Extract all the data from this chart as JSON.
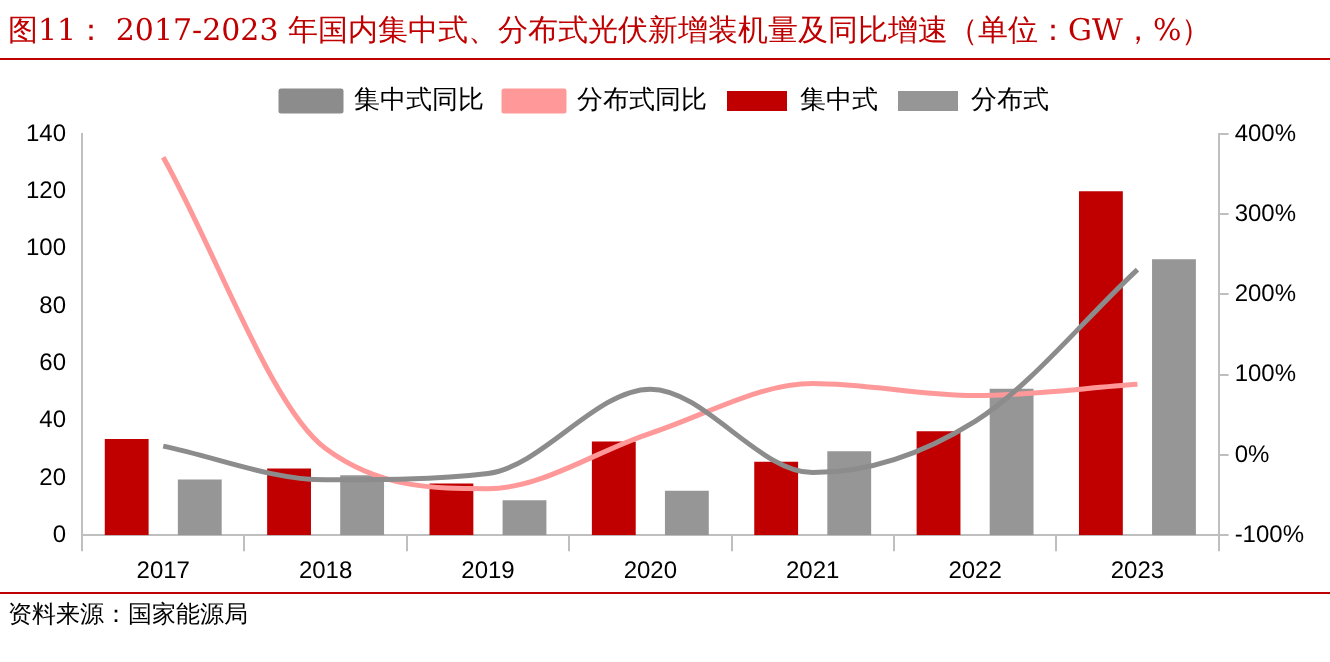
{
  "chart_data": {
    "type": "bar",
    "title": "图11：  2017-2023 年国内集中式、分布式光伏新增装机量及同比增速（单位：GW，%）",
    "categories": [
      "2017",
      "2018",
      "2019",
      "2020",
      "2021",
      "2022",
      "2023"
    ],
    "series": [
      {
        "name": "集中式",
        "color": "#c00000",
        "values": [
          33.6,
          23.3,
          18.0,
          32.7,
          25.6,
          36.3,
          120.0
        ]
      },
      {
        "name": "分布式",
        "color": "#969696",
        "values": [
          19.4,
          20.9,
          12.2,
          15.5,
          29.3,
          51.1,
          96.3
        ]
      },
      {
        "name": "集中式同比",
        "type": "line",
        "axis": "y2",
        "color": "#8c8c8c",
        "values": [
          11,
          -31,
          -23,
          82,
          -22,
          42,
          231
        ]
      },
      {
        "name": "分布式同比",
        "type": "line",
        "axis": "y2",
        "color": "#ff9999",
        "values": [
          371,
          8,
          -42,
          27,
          89,
          74,
          88
        ]
      }
    ],
    "ylim": [
      0,
      140
    ],
    "yticks": [
      0,
      20,
      40,
      60,
      80,
      100,
      120,
      140
    ],
    "y2lim": [
      -100,
      400
    ],
    "y2ticks": [
      {
        "value": -100,
        "label": "-100%"
      },
      {
        "value": 0,
        "label": "0%"
      },
      {
        "value": 100,
        "label": "100%"
      },
      {
        "value": 200,
        "label": "200%"
      },
      {
        "value": 300,
        "label": "300%"
      },
      {
        "value": 400,
        "label": "400%"
      }
    ],
    "grid": false,
    "legend": "top",
    "marker": "none",
    "annotations": [
      "资料来源：国家能源局"
    ]
  }
}
